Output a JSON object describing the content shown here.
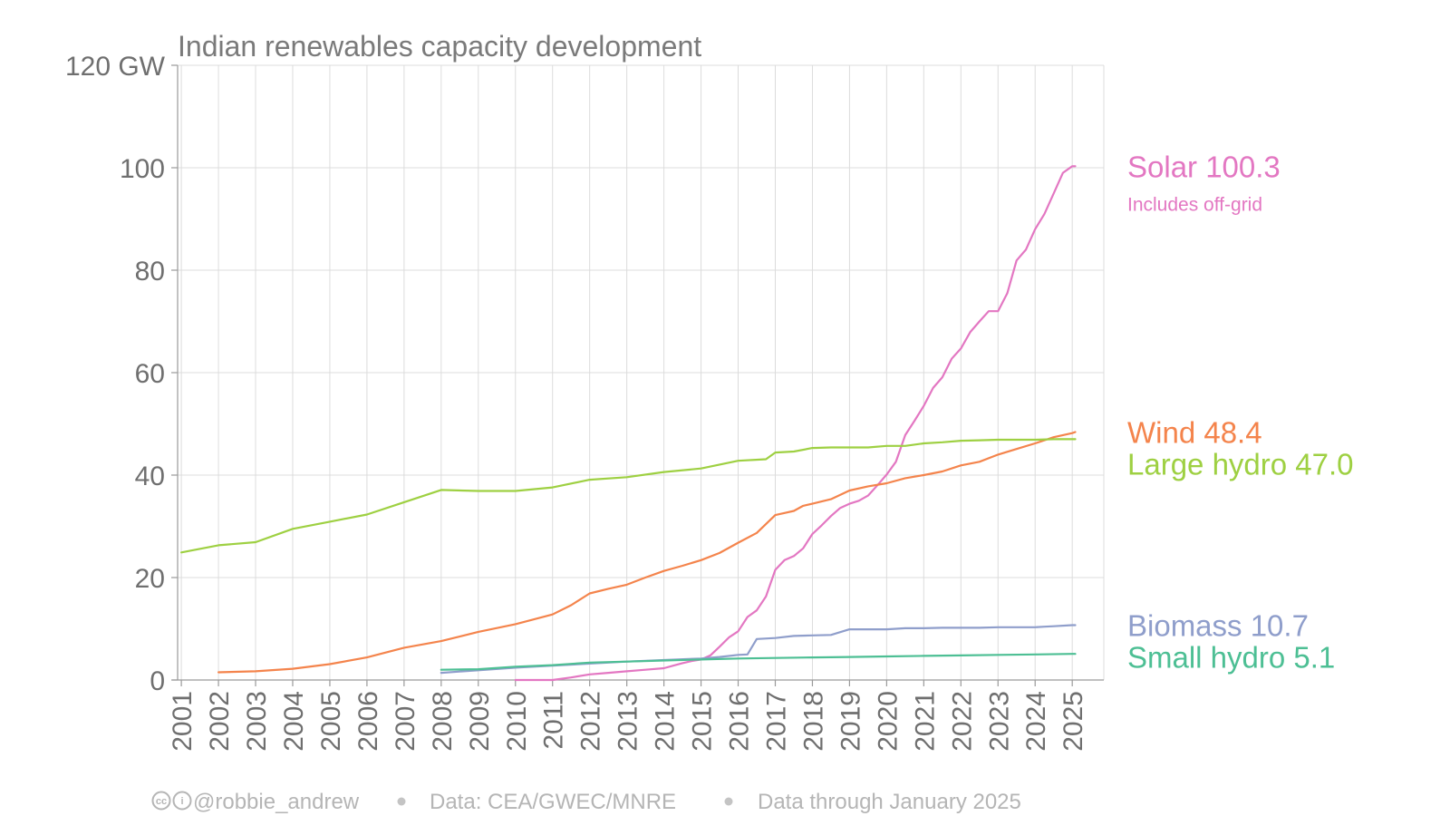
{
  "chart_data": {
    "type": "line",
    "title": "Indian renewables capacity development",
    "unit": "GW",
    "ylim": [
      0,
      120
    ],
    "yticks": [
      0,
      20,
      40,
      60,
      80,
      100,
      120
    ],
    "ytick_labels": [
      "0",
      "20",
      "40",
      "60",
      "80",
      "100",
      "120 GW"
    ],
    "xlim": [
      2000.9,
      2025.85
    ],
    "x_tick_labels": [
      "2001",
      "2002",
      "2003",
      "2004",
      "2005",
      "2006",
      "2007",
      "2008",
      "2009",
      "2010",
      "2011",
      "2012",
      "2013",
      "2014",
      "2015",
      "2016",
      "2017",
      "2018",
      "2019",
      "2020",
      "2021",
      "2022",
      "2023",
      "2024",
      "2025"
    ],
    "grid": true,
    "legend": "end-labels-right",
    "series": [
      {
        "name": "Solar",
        "final_value_label": "100.3",
        "note": "Includes off-grid",
        "color": "#e377c2",
        "x": [
          2010.0,
          2011.0,
          2011.5,
          2012.0,
          2012.5,
          2013.0,
          2013.5,
          2014.0,
          2014.25,
          2014.5,
          2014.75,
          2015.0,
          2015.25,
          2015.5,
          2015.75,
          2016.0,
          2016.25,
          2016.5,
          2016.75,
          2017.0,
          2017.25,
          2017.5,
          2017.75,
          2018.0,
          2018.25,
          2018.5,
          2018.75,
          2019.0,
          2019.25,
          2019.5,
          2019.75,
          2020.0,
          2020.25,
          2020.5,
          2020.75,
          2021.0,
          2021.25,
          2021.5,
          2021.75,
          2022.0,
          2022.25,
          2022.5,
          2022.75,
          2023.0,
          2023.25,
          2023.5,
          2023.75,
          2024.0,
          2024.25,
          2024.5,
          2024.75,
          2025.0,
          2025.08
        ],
        "values": [
          0.0,
          0.0,
          0.5,
          1.1,
          1.4,
          1.7,
          2.0,
          2.3,
          2.8,
          3.3,
          3.7,
          4.0,
          4.8,
          6.5,
          8.3,
          9.5,
          12.3,
          13.6,
          16.3,
          21.5,
          23.4,
          24.2,
          25.7,
          28.5,
          30.2,
          32.0,
          33.6,
          34.4,
          35.0,
          36.0,
          38.0,
          40.1,
          42.6,
          47.8,
          50.6,
          53.5,
          57.0,
          59.1,
          62.7,
          64.7,
          67.9,
          70.0,
          72.0,
          72.0,
          75.5,
          81.9,
          84.0,
          88.0,
          91.0,
          95.0,
          99.0,
          100.3,
          100.3
        ]
      },
      {
        "name": "Wind",
        "final_value_label": "48.4",
        "color": "#f4844c",
        "x": [
          2002.0,
          2003.0,
          2004.0,
          2005.0,
          2006.0,
          2007.0,
          2008.0,
          2009.0,
          2010.0,
          2011.0,
          2011.5,
          2012.0,
          2012.5,
          2013.0,
          2013.5,
          2014.0,
          2014.5,
          2015.0,
          2015.5,
          2016.0,
          2016.5,
          2017.0,
          2017.25,
          2017.5,
          2017.75,
          2018.0,
          2018.5,
          2019.0,
          2019.5,
          2020.0,
          2020.5,
          2021.0,
          2021.5,
          2022.0,
          2022.5,
          2023.0,
          2023.5,
          2024.0,
          2024.5,
          2025.0,
          2025.08
        ],
        "values": [
          1.5,
          1.7,
          2.2,
          3.1,
          4.4,
          6.3,
          7.6,
          9.4,
          10.9,
          12.8,
          14.6,
          16.9,
          17.8,
          18.6,
          20.0,
          21.3,
          22.3,
          23.4,
          24.8,
          26.8,
          28.7,
          32.2,
          32.6,
          33.0,
          34.0,
          34.4,
          35.3,
          37.0,
          37.8,
          38.4,
          39.4,
          40.0,
          40.7,
          41.9,
          42.6,
          44.0,
          45.1,
          46.2,
          47.4,
          48.2,
          48.4
        ]
      },
      {
        "name": "Large hydro",
        "final_value_label": "47.0",
        "color": "#9ed042",
        "x": [
          2001.0,
          2002.0,
          2003.0,
          2004.0,
          2005.0,
          2006.0,
          2007.0,
          2008.0,
          2009.0,
          2010.0,
          2011.0,
          2012.0,
          2013.0,
          2014.0,
          2015.0,
          2016.0,
          2016.75,
          2017.0,
          2017.5,
          2018.0,
          2018.5,
          2019.0,
          2019.5,
          2020.0,
          2020.5,
          2021.0,
          2021.5,
          2022.0,
          2022.5,
          2023.0,
          2023.5,
          2024.0,
          2024.5,
          2025.0,
          2025.08
        ],
        "values": [
          24.9,
          26.3,
          26.9,
          29.5,
          30.9,
          32.3,
          34.7,
          37.1,
          36.9,
          36.9,
          37.6,
          39.1,
          39.6,
          40.6,
          41.3,
          42.8,
          43.1,
          44.4,
          44.6,
          45.3,
          45.4,
          45.4,
          45.4,
          45.7,
          45.7,
          46.2,
          46.4,
          46.7,
          46.8,
          46.9,
          46.9,
          46.9,
          47.0,
          47.0,
          47.0
        ]
      },
      {
        "name": "Biomass",
        "final_value_label": "10.7",
        "color": "#8f9ecb",
        "x": [
          2008.0,
          2009.0,
          2010.0,
          2011.0,
          2012.0,
          2013.0,
          2014.0,
          2015.0,
          2015.5,
          2016.0,
          2016.25,
          2016.5,
          2017.0,
          2017.5,
          2018.0,
          2018.5,
          2019.0,
          2019.5,
          2020.0,
          2020.5,
          2021.0,
          2021.5,
          2022.0,
          2022.5,
          2023.0,
          2023.5,
          2024.0,
          2024.25,
          2024.5,
          2025.0,
          2025.08
        ],
        "values": [
          1.4,
          1.9,
          2.4,
          2.8,
          3.2,
          3.6,
          3.9,
          4.2,
          4.5,
          4.9,
          5.0,
          8.0,
          8.2,
          8.6,
          8.7,
          8.8,
          9.9,
          9.9,
          9.9,
          10.1,
          10.1,
          10.2,
          10.2,
          10.2,
          10.3,
          10.3,
          10.3,
          10.4,
          10.5,
          10.7,
          10.7
        ]
      },
      {
        "name": "Small hydro",
        "final_value_label": "5.1",
        "color": "#4dbf94",
        "x": [
          2008.0,
          2009.0,
          2010.0,
          2011.0,
          2012.0,
          2013.0,
          2014.0,
          2015.0,
          2016.0,
          2017.0,
          2018.0,
          2019.0,
          2020.0,
          2021.0,
          2022.0,
          2023.0,
          2024.0,
          2025.0,
          2025.08
        ],
        "values": [
          2.0,
          2.1,
          2.6,
          2.9,
          3.4,
          3.6,
          3.8,
          4.0,
          4.2,
          4.3,
          4.4,
          4.5,
          4.6,
          4.7,
          4.8,
          4.9,
          5.0,
          5.1,
          5.1
        ]
      }
    ]
  },
  "footer": {
    "cc_icon_label": "cc",
    "by_icon_label": "i",
    "author": "@robbie_andrew",
    "source": "Data: CEA/GWEC/MNRE",
    "coverage": "Data through January 2025"
  }
}
